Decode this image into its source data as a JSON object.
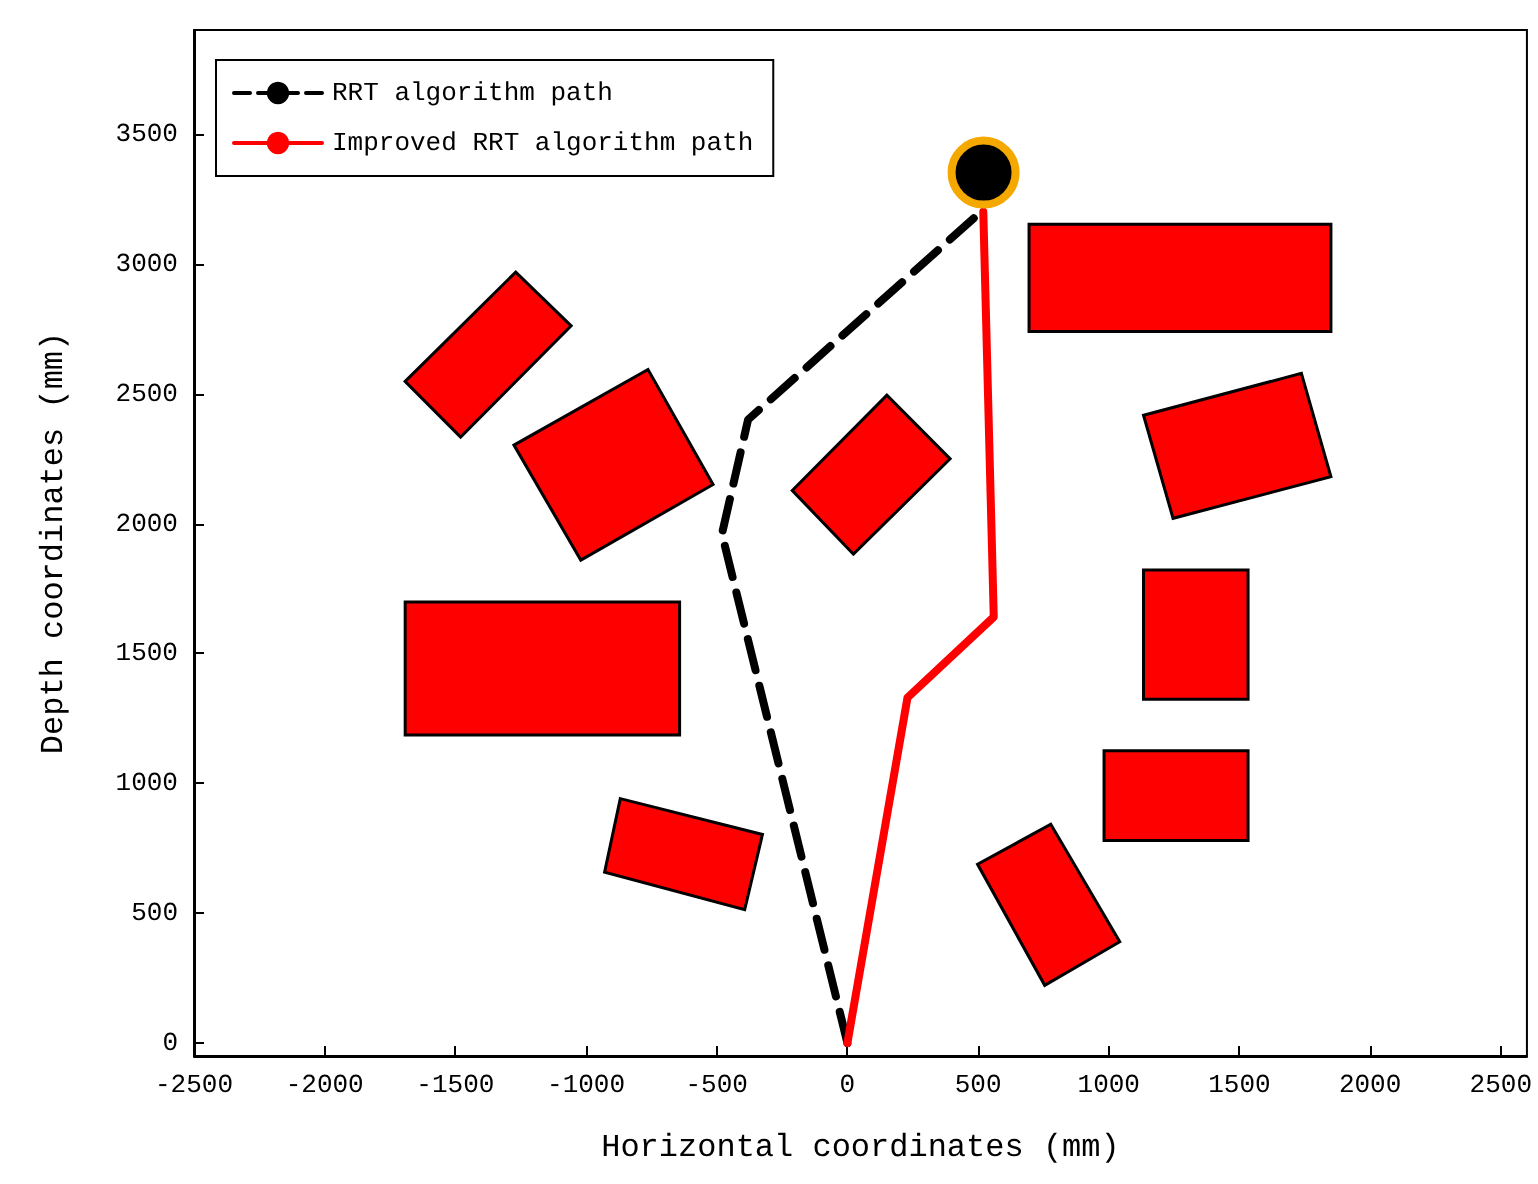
{
  "chart_data": {
    "type": "line",
    "xlabel": "Horizontal coordinates (mm)",
    "ylabel": "Depth coordinates (mm)",
    "xlim": [
      -2500,
      2600
    ],
    "xticks": [
      -2500,
      -2000,
      -1500,
      -1000,
      -500,
      0,
      500,
      1000,
      1500,
      2000,
      2500
    ],
    "ylim": [
      -50,
      3900
    ],
    "yticks": [
      0,
      500,
      1000,
      1500,
      2000,
      2500,
      3000,
      3500
    ],
    "grid": false,
    "legend": "top left",
    "marker": "none",
    "series": [
      {
        "name": "RRT algorithm path",
        "color": "#000000",
        "line_style": "dashed",
        "x": [
          0,
          -480,
          -380,
          500
        ],
        "values": [
          0,
          1960,
          2400,
          3190
        ]
      },
      {
        "name": "Improved RRT algorithm path",
        "color": "#ff0000",
        "line_style": "solid",
        "x": [
          0,
          230,
          560,
          520
        ],
        "values": [
          0,
          1330,
          1640,
          3200
        ]
      }
    ]
  }
}
